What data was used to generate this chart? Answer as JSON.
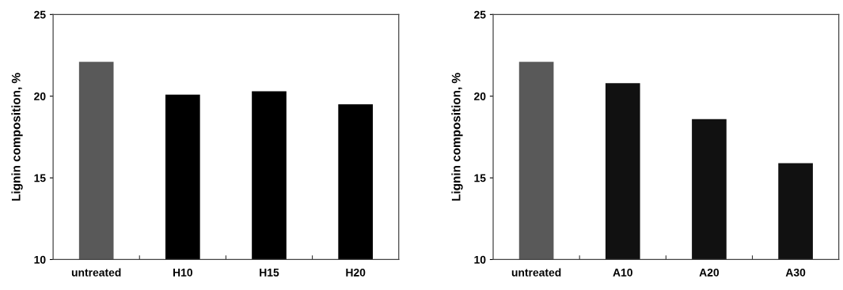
{
  "chart_data": [
    {
      "type": "bar",
      "ylabel": "Lignin composition, %",
      "categories": [
        "untreated",
        "H10",
        "H15",
        "H20"
      ],
      "values": [
        22.1,
        20.1,
        20.3,
        19.5
      ],
      "colors": [
        "#595959",
        "#000000",
        "#000000",
        "#000000"
      ],
      "ylim": [
        10,
        25
      ],
      "yticks": [
        10,
        15,
        20,
        25
      ],
      "grid": false,
      "legend": false
    },
    {
      "type": "bar",
      "ylabel": "Lignin composition, %",
      "categories": [
        "untreated",
        "A10",
        "A20",
        "A30"
      ],
      "values": [
        22.1,
        20.8,
        18.6,
        15.9
      ],
      "colors": [
        "#595959",
        "#111111",
        "#111111",
        "#111111"
      ],
      "ylim": [
        10,
        25
      ],
      "yticks": [
        10,
        15,
        20,
        25
      ],
      "grid": false,
      "legend": false
    }
  ]
}
